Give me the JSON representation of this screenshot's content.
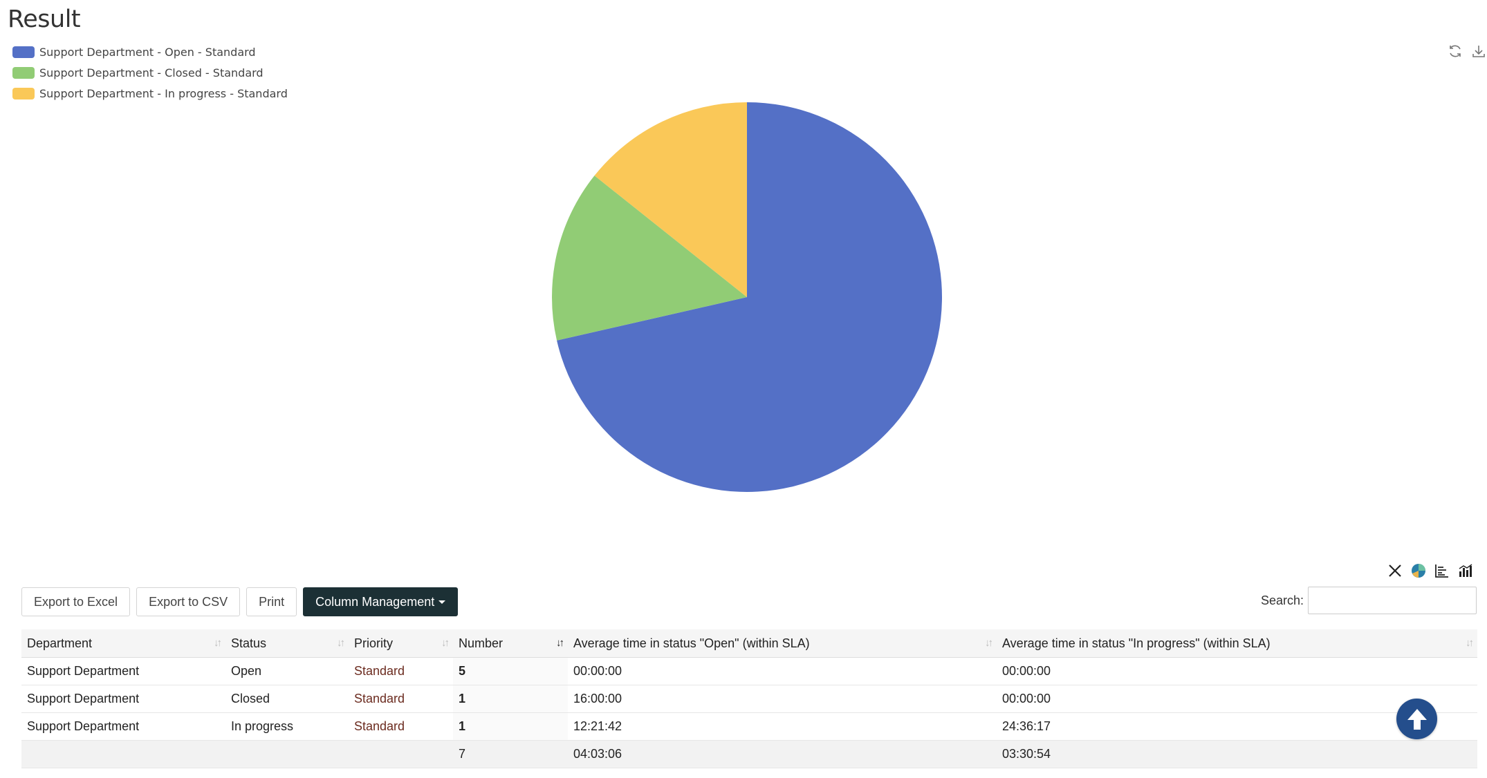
{
  "page": {
    "title": "Result"
  },
  "legend": [
    {
      "label": "Support Department - Open - Standard",
      "color": "#5470c6"
    },
    {
      "label": "Support Department - Closed - Standard",
      "color": "#91cc75"
    },
    {
      "label": "Support Department - In progress - Standard",
      "color": "#fac858"
    }
  ],
  "chart_tools": {
    "refresh_icon": "refresh-icon",
    "download_icon": "download-icon"
  },
  "chart_data": {
    "type": "pie",
    "title": "",
    "categories": [
      "Support Department - Open - Standard",
      "Support Department - Closed - Standard",
      "Support Department - In progress - Standard"
    ],
    "values": [
      5,
      1,
      1
    ],
    "colors": [
      "#5470c6",
      "#91cc75",
      "#fac858"
    ],
    "legend": "top-left"
  },
  "view_icons": [
    "close-view-icon",
    "pie-chart-icon",
    "bar-chart-icon",
    "column-chart-icon"
  ],
  "toolbar": {
    "export_excel": "Export to Excel",
    "export_csv": "Export to CSV",
    "print": "Print",
    "column_management": "Column Management"
  },
  "search": {
    "label": "Search:",
    "value": ""
  },
  "table": {
    "columns": [
      "Department",
      "Status",
      "Priority",
      "Number",
      "Average time in status \"Open\" (within SLA)",
      "Average time in status \"In progress\" (within SLA)"
    ],
    "rows": [
      {
        "department": "Support Department",
        "status": "Open",
        "priority": "Standard",
        "number": "5",
        "avg_open": "00:00:00",
        "avg_in_progress": "00:00:00"
      },
      {
        "department": "Support Department",
        "status": "Closed",
        "priority": "Standard",
        "number": "1",
        "avg_open": "16:00:00",
        "avg_in_progress": "00:00:00"
      },
      {
        "department": "Support Department",
        "status": "In progress",
        "priority": "Standard",
        "number": "1",
        "avg_open": "12:21:42",
        "avg_in_progress": "24:36:17"
      }
    ],
    "totals": {
      "number": "7",
      "avg_open": "04:03:06",
      "avg_in_progress": "03:30:54"
    }
  },
  "accent": {
    "dark_button": "#1c3035",
    "scroll_top": "#244e8c"
  }
}
